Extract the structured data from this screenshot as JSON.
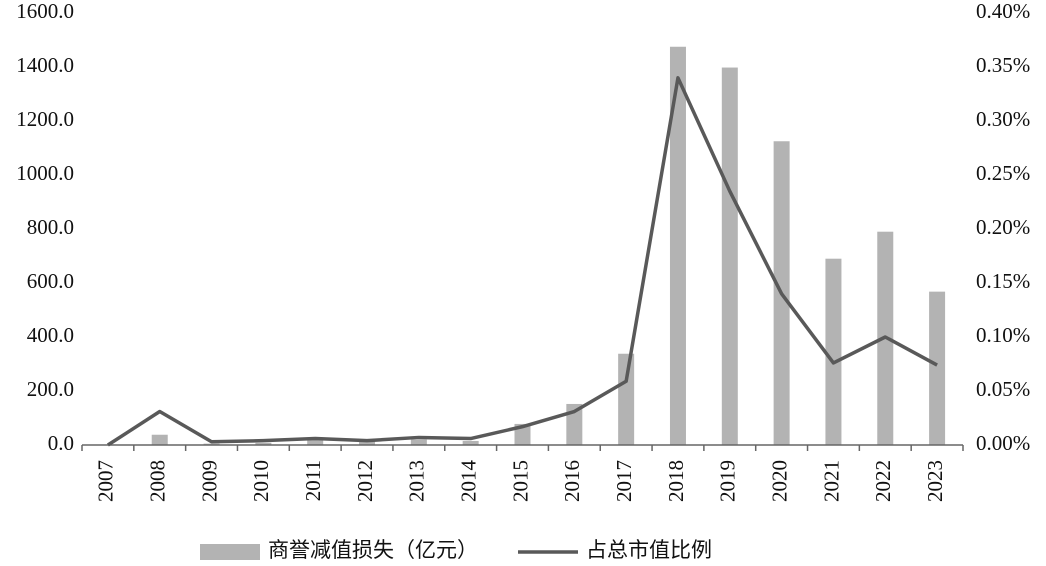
{
  "chart_data": {
    "type": "bar_line",
    "categories": [
      "2007",
      "2008",
      "2009",
      "2010",
      "2011",
      "2012",
      "2013",
      "2014",
      "2015",
      "2016",
      "2017",
      "2018",
      "2019",
      "2020",
      "2021",
      "2022",
      "2023"
    ],
    "series": [
      {
        "name": "商誉减值损失（亿元）",
        "color": "#b3b3b3",
        "type": "bar",
        "values": [
          2,
          38,
          5,
          8,
          25,
          15,
          20,
          15,
          78,
          152,
          338,
          1475,
          1398,
          1125,
          690,
          790,
          568
        ]
      },
      {
        "name": "占总市值比例",
        "color": "#595959",
        "type": "line",
        "axis": "y2",
        "values": [
          0.0,
          0.031,
          0.003,
          0.004,
          0.006,
          0.004,
          0.007,
          0.006,
          0.017,
          0.031,
          0.059,
          0.34,
          0.235,
          0.14,
          0.076,
          0.1,
          0.074
        ]
      }
    ],
    "ylim": [
      0,
      1600
    ],
    "yticks": [
      {
        "value": 0,
        "label": "0.0"
      },
      {
        "value": 200,
        "label": "200.0"
      },
      {
        "value": 400,
        "label": "400.0"
      },
      {
        "value": 600,
        "label": "600.0"
      },
      {
        "value": 800,
        "label": "800.0"
      },
      {
        "value": 1000,
        "label": "1000.0"
      },
      {
        "value": 1200,
        "label": "1200.0"
      },
      {
        "value": 1400,
        "label": "1400.0"
      },
      {
        "value": 1600,
        "label": "1600.0"
      }
    ],
    "y2lim": [
      0,
      0.4
    ],
    "y2ticks": [
      {
        "value": 0,
        "label": "0.00%"
      },
      {
        "value": 0.05,
        "label": "0.05%"
      },
      {
        "value": 0.1,
        "label": "0.10%"
      },
      {
        "value": 0.15,
        "label": "0.15%"
      },
      {
        "value": 0.2,
        "label": "0.20%"
      },
      {
        "value": 0.25,
        "label": "0.25%"
      },
      {
        "value": 0.3,
        "label": "0.30%"
      },
      {
        "value": 0.35,
        "label": "0.35%"
      },
      {
        "value": 0.4,
        "label": "0.40%"
      }
    ],
    "legend": "bottom"
  }
}
